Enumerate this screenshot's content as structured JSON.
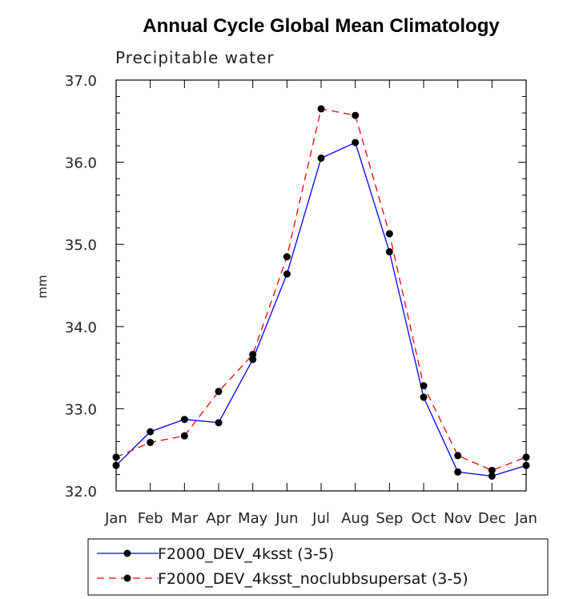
{
  "chart_data": {
    "type": "line",
    "title": "Annual Cycle Global Mean Climatology",
    "subtitle": "Precipitable water",
    "xlabel": "",
    "ylabel": "mm",
    "categories": [
      "Jan",
      "Feb",
      "Mar",
      "Apr",
      "May",
      "Jun",
      "Jul",
      "Aug",
      "Sep",
      "Oct",
      "Nov",
      "Dec",
      "Jan"
    ],
    "ylim": [
      32.0,
      37.0
    ],
    "yticks": [
      "32.0",
      "33.0",
      "34.0",
      "35.0",
      "36.0",
      "37.0"
    ],
    "grid": false,
    "legend_position": "bottom",
    "series": [
      {
        "name": "F2000_DEV_4ksst (3-5)",
        "color": "#0000ff",
        "dash": "solid",
        "marker": "filled-circle",
        "values": [
          32.31,
          32.72,
          32.87,
          32.83,
          33.6,
          34.64,
          36.05,
          36.24,
          34.91,
          33.14,
          32.23,
          32.18,
          32.31
        ]
      },
      {
        "name": "F2000_DEV_4ksst_noclubbsupersat (3-5)",
        "color": "#ff0000",
        "dash": "dashed",
        "marker": "filled-circle",
        "values": [
          32.41,
          32.59,
          32.67,
          33.21,
          33.66,
          34.85,
          36.65,
          36.57,
          35.13,
          33.28,
          32.43,
          32.25,
          32.41
        ]
      }
    ]
  }
}
